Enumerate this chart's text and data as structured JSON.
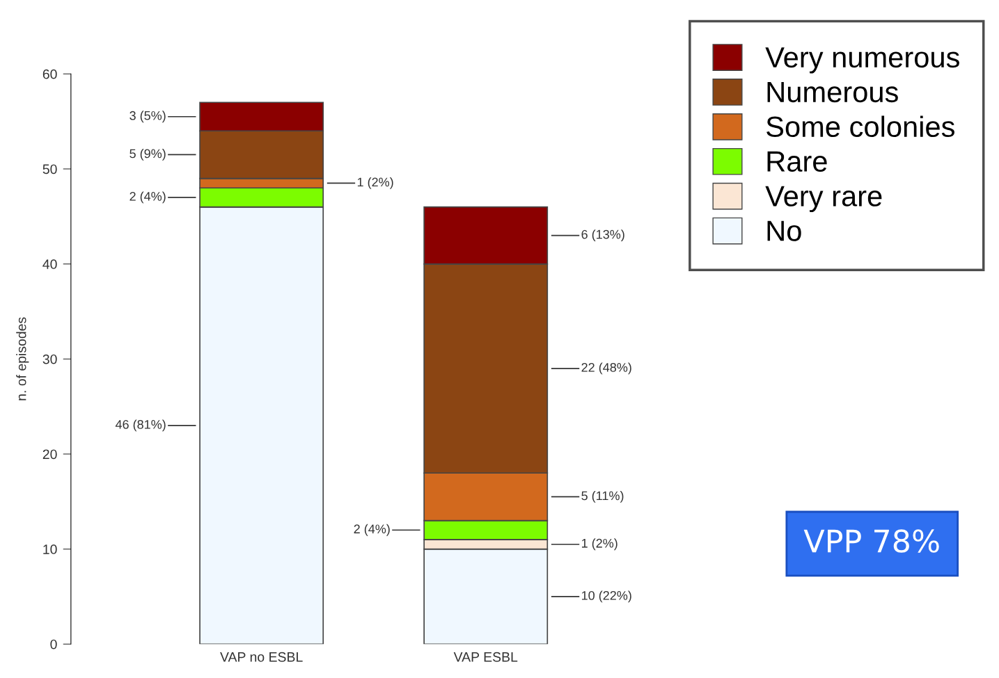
{
  "chart_data": {
    "type": "bar",
    "stacked": true,
    "ylabel": "n. of episodes",
    "categories": [
      "VAP no ESBL",
      "VAP ESBL"
    ],
    "series": [
      {
        "name": "No",
        "color": "#f0f8ff",
        "values": [
          46,
          10
        ],
        "value_labels": [
          "46 (81%)",
          "10 (22%)"
        ]
      },
      {
        "name": "Very rare",
        "color": "#fbe6d4",
        "values": [
          0,
          1
        ],
        "value_labels": [
          null,
          "1 (2%)"
        ]
      },
      {
        "name": "Rare",
        "color": "#7cfc00",
        "values": [
          2,
          2
        ],
        "value_labels": [
          "2 (4%)",
          "2 (4%)"
        ]
      },
      {
        "name": "Some colonies",
        "color": "#d2691e",
        "values": [
          1,
          5
        ],
        "value_labels": [
          "1 (2%)",
          "5 (11%)"
        ]
      },
      {
        "name": "Numerous",
        "color": "#8b4513",
        "values": [
          5,
          22
        ],
        "value_labels": [
          "5 (9%)",
          "22 (48%)"
        ]
      },
      {
        "name": "Very numerous",
        "color": "#8b0000",
        "values": [
          3,
          6
        ],
        "value_labels": [
          "3 (5%)",
          "6 (13%)"
        ]
      }
    ],
    "ylim": [
      0,
      60
    ],
    "yticks": [
      0,
      10,
      20,
      30,
      40,
      50,
      60
    ],
    "legend": "top right",
    "grid": false,
    "annotations": [
      "VPP 78%"
    ]
  }
}
